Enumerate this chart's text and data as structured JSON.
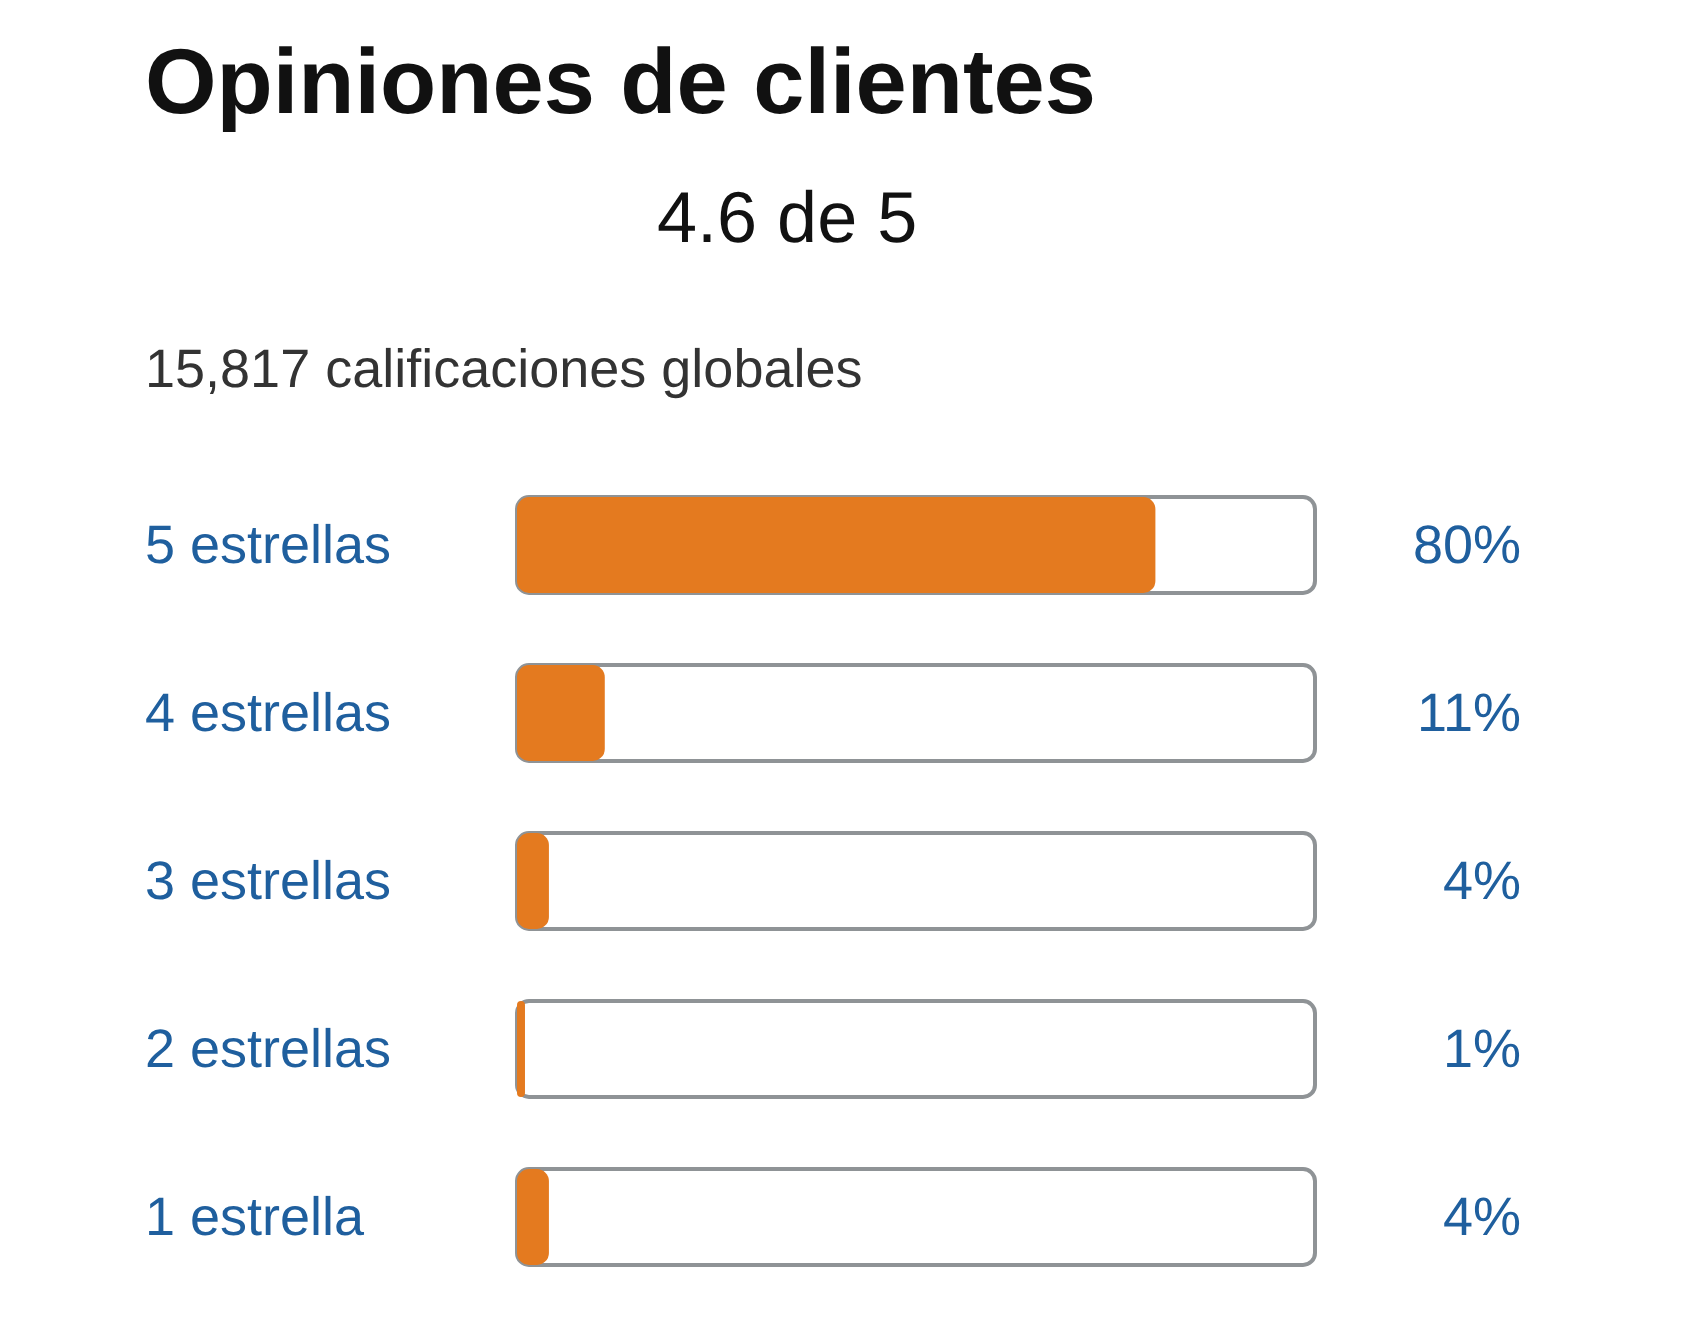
{
  "chart_data": {
    "type": "bar",
    "orientation": "horizontal",
    "title": "Opiniones de clientes",
    "subtitle": "4.6 de 5",
    "annotations": [
      "15,817 calificaciones globales"
    ],
    "categories": [
      "5 estrellas",
      "4 estrellas",
      "3 estrellas",
      "2 estrellas",
      "1 estrella"
    ],
    "values": [
      80,
      11,
      4,
      1,
      4
    ],
    "color": "#e47a1f",
    "tick_labels": "y",
    "value_labels": [
      "80%",
      "11%",
      "4%",
      "1%",
      "4%"
    ]
  }
}
